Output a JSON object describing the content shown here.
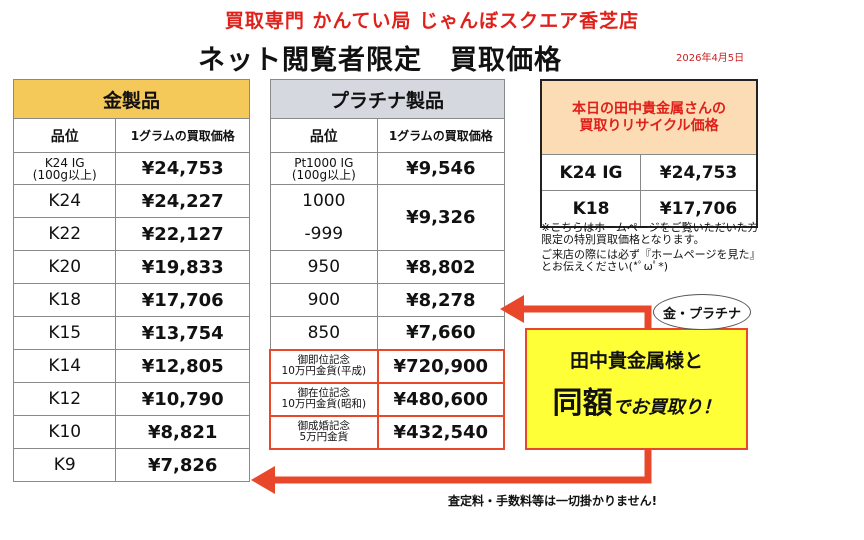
{
  "header": {
    "store": "買取専門 かんてい局 じゃんぼスクエア香芝店",
    "headline": "ネット閲覧者限定　買取価格",
    "date": "2026年4月5日"
  },
  "gold": {
    "title": "金製品",
    "col_grade": "品位",
    "col_price": "1グラムの買取価格",
    "rows": [
      {
        "grade": "K24 IG\n(100g以上)",
        "price": "¥24,753"
      },
      {
        "grade": "K24",
        "price": "¥24,227"
      },
      {
        "grade": "K22",
        "price": "¥22,127"
      },
      {
        "grade": "K20",
        "price": "¥19,833"
      },
      {
        "grade": "K18",
        "price": "¥17,706"
      },
      {
        "grade": "K15",
        "price": "¥13,754"
      },
      {
        "grade": "K14",
        "price": "¥12,805"
      },
      {
        "grade": "K12",
        "price": "¥10,790"
      },
      {
        "grade": "K10",
        "price": "¥8,821"
      },
      {
        "grade": "K9",
        "price": "¥7,826"
      }
    ]
  },
  "platinum": {
    "title": "プラチナ製品",
    "col_grade": "品位",
    "col_price": "1グラムの買取価格",
    "rows": [
      {
        "grade": "Pt1000 IG\n(100g以上)",
        "price": "¥9,546"
      },
      {
        "grade": "1000",
        "grade2": "-999",
        "price": "¥9,326"
      },
      {
        "grade": "950",
        "price": "¥8,802"
      },
      {
        "grade": "900",
        "price": "¥8,278"
      },
      {
        "grade": "850",
        "price": "¥7,660"
      }
    ],
    "coins": [
      {
        "grade": "御即位記念\n10万円金貨(平成)",
        "price": "¥720,900"
      },
      {
        "grade": "御在位記念\n10万円金貨(昭和)",
        "price": "¥480,600"
      },
      {
        "grade": "御成婚記念\n5万円金貨",
        "price": "¥432,540"
      }
    ]
  },
  "daily": {
    "title": "本日の田中貴金属さんの\n買取りリサイクル価格",
    "rows": [
      {
        "grade": "K24 IG",
        "price": "¥24,753"
      },
      {
        "grade": "K18",
        "price": "¥17,706"
      }
    ]
  },
  "note": {
    "line1": "※こちらはホームページをご覧いただいた方限定の特別買取価格となります。",
    "line2": "ご来店の際には必ず『ホームページを見た』とお伝えください(*ﾟωﾟ*)"
  },
  "promo": {
    "line1": "田中貴金属様と",
    "big": "同額",
    "small": "でお買取り！",
    "badge": "金・プラチナ"
  },
  "fee": "査定料・手数料等は一切掛かりません!",
  "colors": {
    "red": "#e0201a",
    "gold_header": "#f5c85a",
    "platinum_header": "#d5d8de",
    "promo_bg": "#ffff38",
    "arrow": "#e8472a"
  }
}
